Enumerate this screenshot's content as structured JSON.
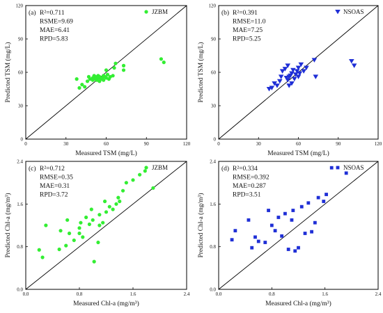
{
  "chart_data": [
    {
      "type": "scatter",
      "panel_label": "(a)",
      "stats": [
        "R²=0.711",
        "RSME=9.69",
        "MAE=6.41",
        "RPD=5.83"
      ],
      "legend": "JZBM",
      "marker": "circle",
      "color": "#33ee33",
      "xlabel": "Measured TSM (mg/L)",
      "ylabel": "Predicted TSM (mg/L)",
      "xlim": [
        0,
        120
      ],
      "ylim": [
        0,
        120
      ],
      "xticks": [
        "0",
        "30",
        "60",
        "90",
        "120"
      ],
      "yticks": [
        "0",
        "30",
        "60",
        "90",
        "120"
      ],
      "one_to_one_line": true,
      "points": [
        [
          38,
          54
        ],
        [
          40,
          46
        ],
        [
          42,
          49
        ],
        [
          44,
          47
        ],
        [
          46,
          52
        ],
        [
          47,
          56
        ],
        [
          48,
          54
        ],
        [
          50,
          55
        ],
        [
          50,
          53
        ],
        [
          51,
          57
        ],
        [
          52,
          56
        ],
        [
          52,
          54
        ],
        [
          53,
          53
        ],
        [
          54,
          55
        ],
        [
          54,
          57
        ],
        [
          55,
          56
        ],
        [
          55,
          52
        ],
        [
          56,
          54
        ],
        [
          57,
          55
        ],
        [
          58,
          57
        ],
        [
          58,
          53
        ],
        [
          59,
          56
        ],
        [
          60,
          55
        ],
        [
          60,
          62
        ],
        [
          61,
          58
        ],
        [
          62,
          54
        ],
        [
          63,
          56
        ],
        [
          65,
          57
        ],
        [
          66,
          64
        ],
        [
          67,
          68
        ],
        [
          73,
          62
        ],
        [
          73,
          66
        ],
        [
          101,
          72
        ],
        [
          103,
          69
        ]
      ]
    },
    {
      "type": "scatter",
      "panel_label": "(b)",
      "stats": [
        "R²=0.391",
        "RMSE=11.0",
        "MAE=7.25",
        "RPD=5.25"
      ],
      "legend": "NSOAS",
      "marker": "triangle-down",
      "color": "#1f2fd6",
      "xlabel": "Measured TSM (mg/L)",
      "ylabel": "Predicted TSM (mg/L)",
      "xlim": [
        0,
        120
      ],
      "ylim": [
        0,
        120
      ],
      "xticks": [
        "0",
        "30",
        "60",
        "90",
        "120"
      ],
      "yticks": [
        "0",
        "30",
        "60",
        "90",
        "120"
      ],
      "one_to_one_line": true,
      "points": [
        [
          38,
          45
        ],
        [
          40,
          46
        ],
        [
          42,
          50
        ],
        [
          44,
          48
        ],
        [
          46,
          52
        ],
        [
          47,
          56
        ],
        [
          48,
          61
        ],
        [
          50,
          63
        ],
        [
          51,
          55
        ],
        [
          52,
          53
        ],
        [
          52,
          66
        ],
        [
          53,
          48
        ],
        [
          53,
          56
        ],
        [
          54,
          57
        ],
        [
          55,
          50
        ],
        [
          55,
          59
        ],
        [
          56,
          62
        ],
        [
          57,
          54
        ],
        [
          58,
          58
        ],
        [
          59,
          61
        ],
        [
          60,
          64
        ],
        [
          60,
          56
        ],
        [
          61,
          59
        ],
        [
          62,
          67
        ],
        [
          64,
          61
        ],
        [
          66,
          64
        ],
        [
          72,
          71
        ],
        [
          73,
          56
        ],
        [
          100,
          70
        ],
        [
          102,
          66
        ]
      ]
    },
    {
      "type": "scatter",
      "panel_label": "(c)",
      "stats": [
        "R²=0.712",
        "RMSE=0.35",
        "MAE=0.31",
        "RPD=3.72"
      ],
      "legend": "JZBM",
      "marker": "circle",
      "color": "#33ee33",
      "xlabel": "Measured Chl-a (mg/m³)",
      "ylabel": "Predicted Chl-a (mg/m³)",
      "xlim": [
        0,
        2.4
      ],
      "ylim": [
        0,
        2.4
      ],
      "xticks": [
        "0.0",
        "0.8",
        "1.6",
        "2.4"
      ],
      "yticks": [
        "0.0",
        "0.8",
        "1.6",
        "2.4"
      ],
      "one_to_one_line": true,
      "points": [
        [
          0.2,
          0.74
        ],
        [
          0.25,
          0.6
        ],
        [
          0.3,
          1.2
        ],
        [
          0.5,
          0.75
        ],
        [
          0.52,
          1.1
        ],
        [
          0.6,
          0.82
        ],
        [
          0.62,
          1.3
        ],
        [
          0.65,
          1.05
        ],
        [
          0.72,
          0.92
        ],
        [
          0.8,
          1.05
        ],
        [
          0.8,
          1.15
        ],
        [
          0.82,
          1.25
        ],
        [
          0.85,
          0.98
        ],
        [
          0.9,
          1.35
        ],
        [
          0.95,
          1.22
        ],
        [
          0.98,
          1.5
        ],
        [
          1.0,
          1.3
        ],
        [
          1.02,
          0.52
        ],
        [
          1.08,
          0.88
        ],
        [
          1.1,
          1.4
        ],
        [
          1.1,
          1.2
        ],
        [
          1.15,
          1.25
        ],
        [
          1.18,
          1.65
        ],
        [
          1.2,
          1.45
        ],
        [
          1.25,
          1.55
        ],
        [
          1.3,
          1.5
        ],
        [
          1.35,
          1.6
        ],
        [
          1.38,
          1.72
        ],
        [
          1.4,
          1.65
        ],
        [
          1.45,
          1.85
        ],
        [
          1.5,
          2.0
        ],
        [
          1.6,
          2.05
        ],
        [
          1.7,
          2.15
        ],
        [
          1.78,
          2.22
        ],
        [
          1.9,
          1.9
        ]
      ]
    },
    {
      "type": "scatter",
      "panel_label": "(d)",
      "stats": [
        "R²=0.334",
        "RMSE=0.392",
        "MAE=0.287",
        "RPD=3.51"
      ],
      "legend": "NSOAS",
      "marker": "square",
      "color": "#1f2fd6",
      "xlabel": "Measured Chl-a (mg/m³)",
      "ylabel": "Predicted Chl-a (mg/m³)",
      "xlim": [
        0,
        2.4
      ],
      "ylim": [
        0,
        2.4
      ],
      "xticks": [
        "0.0",
        "0.8",
        "1.6",
        "2.4"
      ],
      "yticks": [
        "0.0",
        "0.8",
        "1.6",
        "2.4"
      ],
      "one_to_one_line": true,
      "points": [
        [
          0.2,
          0.93
        ],
        [
          0.25,
          1.1
        ],
        [
          0.45,
          1.3
        ],
        [
          0.5,
          0.78
        ],
        [
          0.55,
          0.98
        ],
        [
          0.6,
          0.9
        ],
        [
          0.7,
          0.88
        ],
        [
          0.75,
          1.48
        ],
        [
          0.8,
          1.2
        ],
        [
          0.85,
          1.1
        ],
        [
          0.9,
          1.35
        ],
        [
          0.95,
          1.0
        ],
        [
          1.0,
          1.42
        ],
        [
          1.05,
          0.75
        ],
        [
          1.1,
          1.3
        ],
        [
          1.12,
          1.48
        ],
        [
          1.15,
          0.72
        ],
        [
          1.2,
          0.78
        ],
        [
          1.25,
          1.55
        ],
        [
          1.3,
          1.05
        ],
        [
          1.35,
          1.62
        ],
        [
          1.4,
          1.08
        ],
        [
          1.45,
          1.25
        ],
        [
          1.5,
          1.72
        ],
        [
          1.58,
          1.65
        ],
        [
          1.62,
          1.78
        ],
        [
          1.7,
          2.28
        ],
        [
          1.92,
          2.18
        ]
      ]
    }
  ]
}
